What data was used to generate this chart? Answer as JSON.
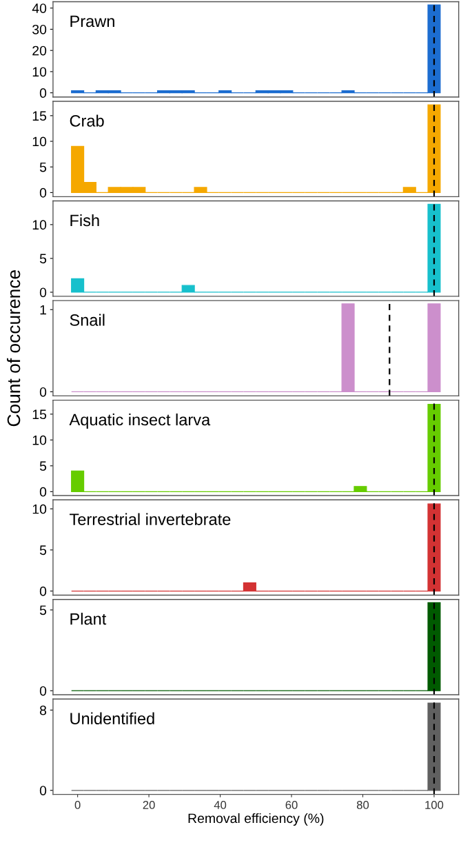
{
  "chart_data": [
    {
      "type": "histogram",
      "title": "Prawn",
      "color": "#1c6dd0",
      "bins": [
        -1.724,
        1.724,
        5.172,
        8.621,
        12.069,
        15.517,
        18.966,
        22.414,
        25.862,
        29.31,
        32.759,
        36.207,
        39.655,
        43.103,
        46.552,
        50.0,
        53.448,
        56.897,
        60.345,
        63.793,
        67.241,
        70.69,
        74.138,
        77.586,
        81.034,
        84.483,
        87.931,
        91.379,
        94.828,
        98.276,
        101.724
      ],
      "values": [
        1,
        0,
        1,
        1,
        0,
        0,
        0,
        1,
        1,
        1,
        0,
        0,
        1,
        0,
        0,
        1,
        1,
        1,
        0,
        0,
        0,
        0,
        1,
        0,
        0,
        0,
        0,
        0,
        0,
        41.5
      ],
      "xlim": [
        -6.9,
        106.9
      ],
      "ylim": [
        -2,
        43
      ],
      "yticks": [
        0,
        10,
        20,
        30,
        40
      ],
      "tick_labels": "y",
      "grid": false,
      "ref_lines": [
        {
          "axis": "x",
          "value": 100,
          "color": "#000000",
          "line_style": "dashed"
        }
      ]
    },
    {
      "type": "histogram",
      "title": "Crab",
      "color": "#f5a800",
      "bins": [
        -1.724,
        1.724,
        5.172,
        8.621,
        12.069,
        15.517,
        18.966,
        22.414,
        25.862,
        29.31,
        32.759,
        36.207,
        39.655,
        43.103,
        46.552,
        50.0,
        53.448,
        56.897,
        60.345,
        63.793,
        67.241,
        70.69,
        74.138,
        77.586,
        81.034,
        84.483,
        87.931,
        91.379,
        94.828,
        98.276,
        101.724
      ],
      "values": [
        9,
        2,
        0,
        1,
        1,
        1,
        0,
        0,
        0,
        0,
        1,
        0,
        0,
        0,
        0,
        0,
        0,
        0,
        0,
        0,
        0,
        0,
        0,
        0,
        0,
        0,
        0,
        1,
        0,
        17.1
      ],
      "xlim": [
        -6.9,
        106.9
      ],
      "ylim": [
        -0.8,
        17.8
      ],
      "yticks": [
        0,
        5,
        10,
        15
      ],
      "tick_labels": "y",
      "grid": false,
      "ref_lines": [
        {
          "axis": "x",
          "value": 100,
          "color": "#000000",
          "line_style": "dashed"
        }
      ]
    },
    {
      "type": "histogram",
      "title": "Fish",
      "color": "#17c0cc",
      "bins": [
        -1.724,
        1.724,
        5.172,
        8.621,
        12.069,
        15.517,
        18.966,
        22.414,
        25.862,
        29.31,
        32.759,
        36.207,
        39.655,
        43.103,
        46.552,
        50.0,
        53.448,
        56.897,
        60.345,
        63.793,
        67.241,
        70.69,
        74.138,
        77.586,
        81.034,
        84.483,
        87.931,
        91.379,
        94.828,
        98.276,
        101.724
      ],
      "values": [
        2,
        0,
        0,
        0,
        0,
        0,
        0,
        0,
        0,
        1,
        0,
        0,
        0,
        0,
        0,
        0,
        0,
        0,
        0,
        0,
        0,
        0,
        0,
        0,
        0,
        0,
        0,
        0,
        0,
        13
      ],
      "xlim": [
        -6.9,
        106.9
      ],
      "ylim": [
        -0.6,
        13.5
      ],
      "yticks": [
        0,
        5,
        10
      ],
      "tick_labels": "y",
      "grid": false,
      "ref_lines": [
        {
          "axis": "x",
          "value": 100,
          "color": "#000000",
          "line_style": "dashed"
        }
      ]
    },
    {
      "type": "histogram",
      "title": "Snail",
      "ylabel": "Count of occurence",
      "color": "#cc8fcc",
      "bins": [
        -1.724,
        1.724,
        5.172,
        8.621,
        12.069,
        15.517,
        18.966,
        22.414,
        25.862,
        29.31,
        32.759,
        36.207,
        39.655,
        43.103,
        46.552,
        50.0,
        53.448,
        56.897,
        60.345,
        63.793,
        67.241,
        70.69,
        74.138,
        77.586,
        81.034,
        84.483,
        87.931,
        91.379,
        94.828,
        98.276,
        101.724
      ],
      "values": [
        0,
        0,
        0,
        0,
        0,
        0,
        0,
        0,
        0,
        0,
        0,
        0,
        0,
        0,
        0,
        0,
        0,
        0,
        0,
        0,
        0,
        0,
        1.07,
        0,
        0,
        0,
        0,
        0,
        0,
        1.07
      ],
      "xlim": [
        -6.9,
        106.9
      ],
      "ylim": [
        -0.05,
        1.11
      ],
      "yticks": [
        0,
        1
      ],
      "tick_labels": "y",
      "grid": false,
      "ref_lines": [
        {
          "axis": "x",
          "value": 87.5,
          "color": "#000000",
          "line_style": "dashed"
        }
      ]
    },
    {
      "type": "histogram",
      "title": "Aquatic insect larva",
      "color": "#66cc00",
      "bins": [
        -1.724,
        1.724,
        5.172,
        8.621,
        12.069,
        15.517,
        18.966,
        22.414,
        25.862,
        29.31,
        32.759,
        36.207,
        39.655,
        43.103,
        46.552,
        50.0,
        53.448,
        56.897,
        60.345,
        63.793,
        67.241,
        70.69,
        74.138,
        77.586,
        81.034,
        84.483,
        87.931,
        91.379,
        94.828,
        98.276,
        101.724
      ],
      "values": [
        4,
        0,
        0,
        0,
        0,
        0,
        0,
        0,
        0,
        0,
        0,
        0,
        0,
        0,
        0,
        0,
        0,
        0,
        0,
        0,
        0,
        0,
        0,
        1,
        0,
        0,
        0,
        0,
        0,
        16.9
      ],
      "xlim": [
        -6.9,
        106.9
      ],
      "ylim": [
        -0.75,
        17.7
      ],
      "yticks": [
        0,
        5,
        10,
        15
      ],
      "tick_labels": "y",
      "grid": false,
      "ref_lines": [
        {
          "axis": "x",
          "value": 100,
          "color": "#000000",
          "line_style": "dashed"
        }
      ]
    },
    {
      "type": "histogram",
      "title": "Terrestrial invertebrate",
      "color": "#d33233",
      "bins": [
        -1.724,
        1.724,
        5.172,
        8.621,
        12.069,
        15.517,
        18.966,
        22.414,
        25.862,
        29.31,
        32.759,
        36.207,
        39.655,
        43.103,
        46.552,
        50.0,
        53.448,
        56.897,
        60.345,
        63.793,
        67.241,
        70.69,
        74.138,
        77.586,
        81.034,
        84.483,
        87.931,
        91.379,
        94.828,
        98.276,
        101.724
      ],
      "values": [
        0,
        0,
        0,
        0,
        0,
        0,
        0,
        0,
        0,
        0,
        0,
        0,
        0,
        0,
        1,
        0,
        0,
        0,
        0,
        0,
        0,
        0,
        0,
        0,
        0,
        0,
        0,
        0,
        0,
        10.6
      ],
      "xlim": [
        -6.9,
        106.9
      ],
      "ylim": [
        -0.5,
        11.1
      ],
      "yticks": [
        0,
        5,
        10
      ],
      "tick_labels": "y",
      "grid": false,
      "ref_lines": [
        {
          "axis": "x",
          "value": 100,
          "color": "#000000",
          "line_style": "dashed"
        }
      ]
    },
    {
      "type": "histogram",
      "title": "Plant",
      "color": "#005a00",
      "bins": [
        -1.724,
        1.724,
        5.172,
        8.621,
        12.069,
        15.517,
        18.966,
        22.414,
        25.862,
        29.31,
        32.759,
        36.207,
        39.655,
        43.103,
        46.552,
        50.0,
        53.448,
        56.897,
        60.345,
        63.793,
        67.241,
        70.69,
        74.138,
        77.586,
        81.034,
        84.483,
        87.931,
        91.379,
        94.828,
        98.276,
        101.724
      ],
      "values": [
        0,
        0,
        0,
        0,
        0,
        0,
        0,
        0,
        0,
        0,
        0,
        0,
        0,
        0,
        0,
        0,
        0,
        0,
        0,
        0,
        0,
        0,
        0,
        0,
        0,
        0,
        0,
        0,
        0,
        5.45
      ],
      "xlim": [
        -6.9,
        106.9
      ],
      "ylim": [
        -0.25,
        5.65
      ],
      "yticks": [
        0,
        5
      ],
      "tick_labels": "y",
      "grid": false,
      "ref_lines": [
        {
          "axis": "x",
          "value": 100,
          "color": "#000000",
          "line_style": "dashed"
        }
      ]
    },
    {
      "type": "histogram",
      "title": "Unidentified",
      "xlabel": "Removal efficiency (%)",
      "color": "#606060",
      "bins": [
        -1.724,
        1.724,
        5.172,
        8.621,
        12.069,
        15.517,
        18.966,
        22.414,
        25.862,
        29.31,
        32.759,
        36.207,
        39.655,
        43.103,
        46.552,
        50.0,
        53.448,
        56.897,
        60.345,
        63.793,
        67.241,
        70.69,
        74.138,
        77.586,
        81.034,
        84.483,
        87.931,
        91.379,
        94.828,
        98.276,
        101.724
      ],
      "values": [
        0,
        0,
        0,
        0,
        0,
        0,
        0,
        0,
        0,
        0,
        0,
        0,
        0,
        0,
        0,
        0,
        0,
        0,
        0,
        0,
        0,
        0,
        0,
        0,
        0,
        0,
        0,
        0,
        0,
        8.7
      ],
      "xlim": [
        -6.9,
        106.9
      ],
      "ylim": [
        -0.4,
        9.1
      ],
      "xticks": [
        0,
        20,
        40,
        60,
        80,
        100
      ],
      "yticks": [
        0,
        8
      ],
      "grid": false,
      "ref_lines": [
        {
          "axis": "x",
          "value": 100,
          "color": "#000000",
          "line_style": "dashed"
        }
      ]
    }
  ]
}
